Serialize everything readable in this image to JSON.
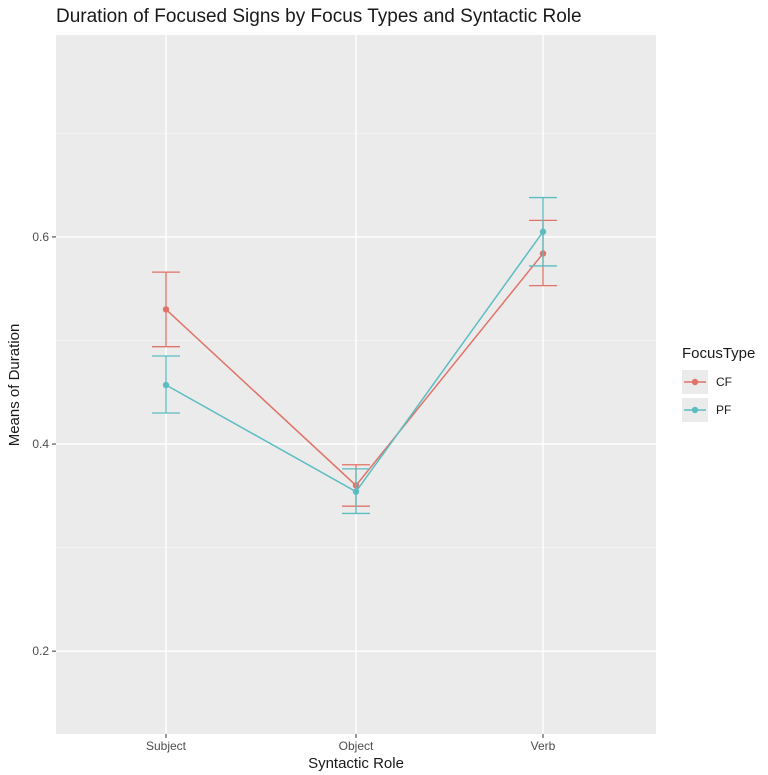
{
  "chart_data": {
    "type": "line",
    "title": "Duration of Focused Signs by Focus Types and Syntactic Role",
    "xlabel": "Syntactic Role",
    "ylabel": "Means of Duration",
    "categories": [
      "Subject",
      "Object",
      "Verb"
    ],
    "ylim": [
      0.12,
      0.795
    ],
    "yticks": [
      0.2,
      0.4,
      0.6
    ],
    "ytick_labels": [
      "0.2",
      "0.4",
      "0.6"
    ],
    "grid": true,
    "legend": {
      "title": "FocusType",
      "position": "right"
    },
    "series": [
      {
        "name": "CF",
        "color": "#E07368",
        "values": [
          0.53,
          0.36,
          0.584
        ],
        "error_low": [
          0.494,
          0.34,
          0.553
        ],
        "error_high": [
          0.566,
          0.38,
          0.616
        ]
      },
      {
        "name": "PF",
        "color": "#5BBDC2",
        "values": [
          0.457,
          0.354,
          0.605
        ],
        "error_low": [
          0.43,
          0.333,
          0.572
        ],
        "error_high": [
          0.485,
          0.376,
          0.638
        ]
      }
    ]
  }
}
